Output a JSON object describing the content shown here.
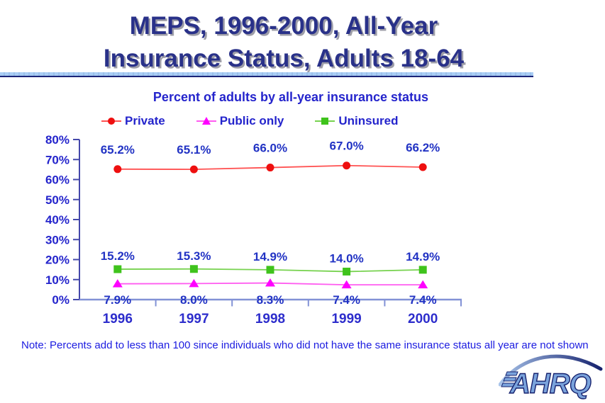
{
  "slide": {
    "title_lines": [
      "MEPS, 1996-2000, All-Year",
      "Insurance Status, Adults 18-64"
    ],
    "note": "Note: Percents add to less than 100 since individuals who did not have the same insurance status all year are not shown",
    "logo_text": "AHRQ"
  },
  "colors": {
    "title_navy": "#293189",
    "text_blue": "#2424cc",
    "note_blue": "#1b1be0",
    "rule_light_blue": "#a9cdf4",
    "rule_navy": "#1a2478",
    "y_axis": "#4448aa",
    "x_axis": "#8292d6",
    "logo_light_blue": "#7aa3dc",
    "logo_navy": "#16226e"
  },
  "chart_data": {
    "type": "line",
    "title": "Percent of adults by all-year insurance status",
    "categories": [
      "1996",
      "1997",
      "1998",
      "1999",
      "2000"
    ],
    "series": [
      {
        "name": "Private",
        "marker": "circle",
        "color": "#ee0f0f",
        "line_color": "#ff5252",
        "values": [
          65.2,
          65.1,
          66.0,
          67.0,
          66.2
        ],
        "label_position": "above"
      },
      {
        "name": "Public only",
        "marker": "triangle",
        "color": "#ff00ff",
        "line_color": "#ff5cf0",
        "values": [
          7.9,
          8.0,
          8.3,
          7.4,
          7.4
        ],
        "label_position": "below"
      },
      {
        "name": "Uninsured",
        "marker": "square",
        "color": "#3fc31c",
        "line_color": "#77d24f",
        "values": [
          15.2,
          15.3,
          14.9,
          14.0,
          14.9
        ],
        "label_position": "above"
      }
    ],
    "legend_order": [
      0,
      1,
      2
    ],
    "ylim": [
      0,
      80
    ],
    "ytick_step": 10,
    "ytick_suffix": "%",
    "value_suffix": "%",
    "grid": false,
    "legend_position": "top",
    "data_labels": true
  }
}
